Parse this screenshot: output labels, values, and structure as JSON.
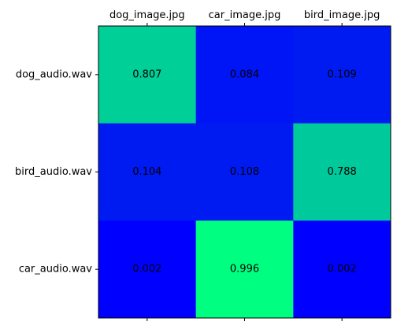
{
  "chart_data": {
    "type": "heatmap",
    "x_categories": [
      "dog_image.jpg",
      "car_image.jpg",
      "bird_image.jpg"
    ],
    "y_categories": [
      "dog_audio.wav",
      "bird_audio.wav",
      "car_audio.wav"
    ],
    "values": [
      [
        0.807,
        0.084,
        0.109
      ],
      [
        0.104,
        0.108,
        0.788
      ],
      [
        0.002,
        0.996,
        0.002
      ]
    ],
    "value_labels": [
      [
        "0.807",
        "0.084",
        "0.109"
      ],
      [
        "0.104",
        "0.108",
        "0.788"
      ],
      [
        "0.002",
        "0.996",
        "0.002"
      ]
    ],
    "colormap": "winter",
    "colormap_low": "#0000ff",
    "colormap_high": "#00ff80",
    "x_ticks_position": "top",
    "grid": false,
    "legend": "none",
    "title": "",
    "xlabel": "",
    "ylabel": ""
  }
}
